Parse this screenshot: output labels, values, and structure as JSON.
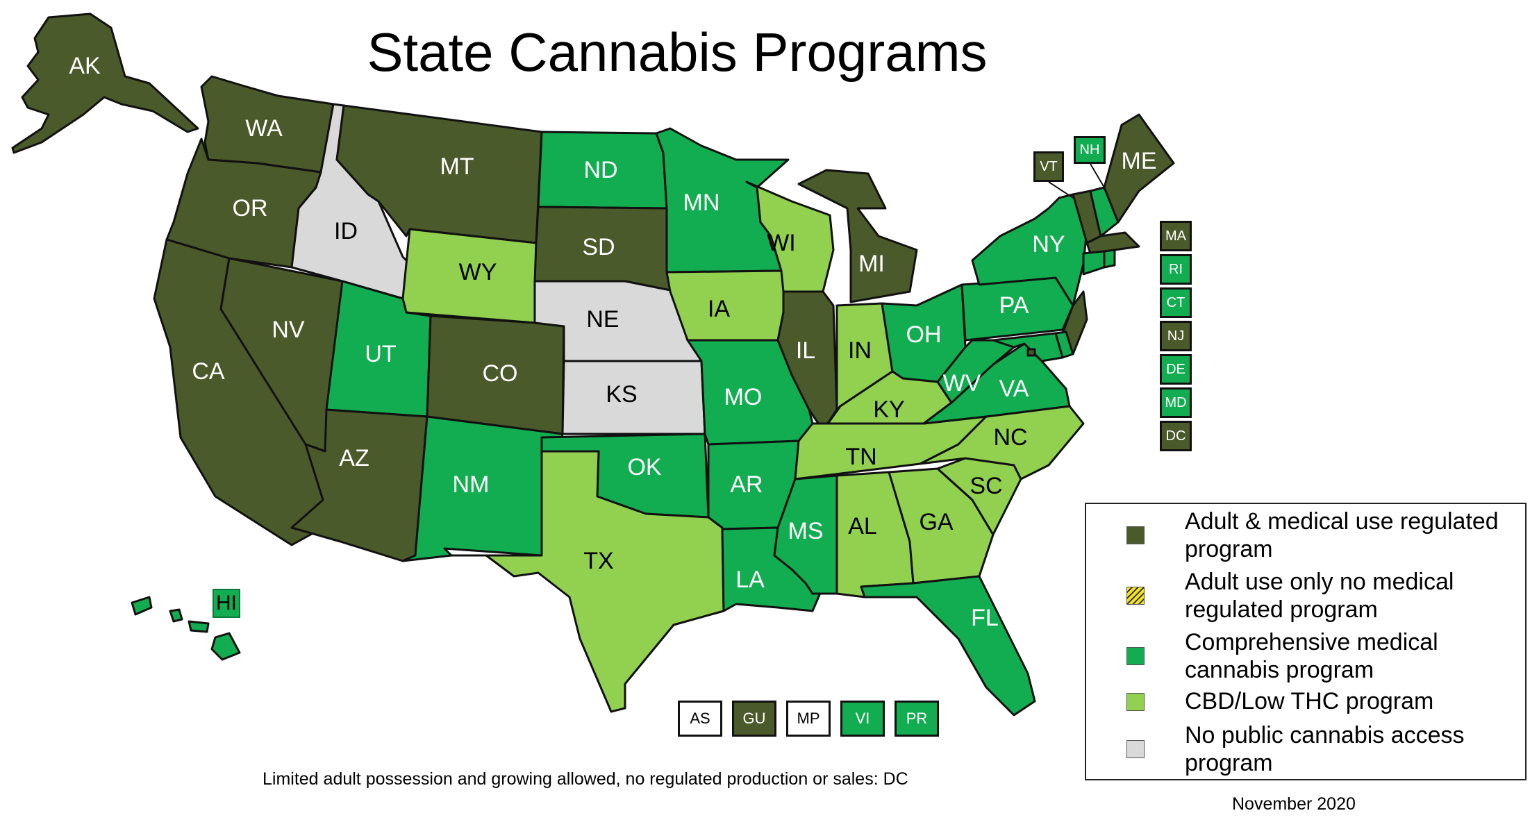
{
  "title": "State Cannabis Programs",
  "colors": {
    "adult_medical": "#4a5a2a",
    "adult_only": "#f4e31c",
    "comprehensive": "#12ad50",
    "cbd_low_thc": "#92d050",
    "no_program": "#d9d9d9",
    "territory_none": "#ffffff"
  },
  "states": [
    {
      "code": "AK",
      "category": "adult_medical"
    },
    {
      "code": "WA",
      "category": "adult_medical"
    },
    {
      "code": "OR",
      "category": "adult_medical"
    },
    {
      "code": "CA",
      "category": "adult_medical"
    },
    {
      "code": "NV",
      "category": "adult_medical"
    },
    {
      "code": "ID",
      "category": "no_program"
    },
    {
      "code": "MT",
      "category": "adult_medical"
    },
    {
      "code": "WY",
      "category": "cbd_low_thc"
    },
    {
      "code": "UT",
      "category": "comprehensive"
    },
    {
      "code": "AZ",
      "category": "adult_medical"
    },
    {
      "code": "CO",
      "category": "adult_medical"
    },
    {
      "code": "NM",
      "category": "comprehensive"
    },
    {
      "code": "ND",
      "category": "comprehensive"
    },
    {
      "code": "SD",
      "category": "adult_medical"
    },
    {
      "code": "NE",
      "category": "no_program"
    },
    {
      "code": "KS",
      "category": "no_program"
    },
    {
      "code": "OK",
      "category": "comprehensive"
    },
    {
      "code": "TX",
      "category": "cbd_low_thc"
    },
    {
      "code": "MN",
      "category": "comprehensive"
    },
    {
      "code": "IA",
      "category": "cbd_low_thc"
    },
    {
      "code": "MO",
      "category": "comprehensive"
    },
    {
      "code": "AR",
      "category": "comprehensive"
    },
    {
      "code": "LA",
      "category": "comprehensive"
    },
    {
      "code": "WI",
      "category": "cbd_low_thc"
    },
    {
      "code": "IL",
      "category": "adult_medical"
    },
    {
      "code": "MI",
      "category": "adult_medical"
    },
    {
      "code": "IN",
      "category": "cbd_low_thc"
    },
    {
      "code": "OH",
      "category": "comprehensive"
    },
    {
      "code": "KY",
      "category": "cbd_low_thc"
    },
    {
      "code": "TN",
      "category": "cbd_low_thc"
    },
    {
      "code": "MS",
      "category": "comprehensive"
    },
    {
      "code": "AL",
      "category": "cbd_low_thc"
    },
    {
      "code": "GA",
      "category": "cbd_low_thc"
    },
    {
      "code": "FL",
      "category": "comprehensive"
    },
    {
      "code": "SC",
      "category": "cbd_low_thc"
    },
    {
      "code": "NC",
      "category": "cbd_low_thc"
    },
    {
      "code": "VA",
      "category": "comprehensive"
    },
    {
      "code": "WV",
      "category": "comprehensive"
    },
    {
      "code": "PA",
      "category": "comprehensive"
    },
    {
      "code": "NY",
      "category": "comprehensive"
    },
    {
      "code": "NJ",
      "category": "adult_medical"
    },
    {
      "code": "VT",
      "category": "adult_medical"
    },
    {
      "code": "NH",
      "category": "comprehensive"
    },
    {
      "code": "ME",
      "category": "adult_medical"
    },
    {
      "code": "MA",
      "category": "adult_medical"
    },
    {
      "code": "RI",
      "category": "comprehensive"
    },
    {
      "code": "CT",
      "category": "comprehensive"
    },
    {
      "code": "DE",
      "category": "comprehensive"
    },
    {
      "code": "MD",
      "category": "comprehensive"
    },
    {
      "code": "DC",
      "category": "adult_medical"
    },
    {
      "code": "HI",
      "category": "comprehensive"
    }
  ],
  "ne_boxes": [
    {
      "code": "MA",
      "category": "adult_medical"
    },
    {
      "code": "RI",
      "category": "comprehensive"
    },
    {
      "code": "CT",
      "category": "comprehensive"
    },
    {
      "code": "NJ",
      "category": "adult_medical"
    },
    {
      "code": "DE",
      "category": "comprehensive"
    },
    {
      "code": "MD",
      "category": "comprehensive"
    },
    {
      "code": "DC",
      "category": "adult_medical"
    }
  ],
  "callouts": [
    {
      "code": "VT",
      "category": "adult_medical"
    },
    {
      "code": "NH",
      "category": "comprehensive"
    },
    {
      "code": "HI",
      "category": "comprehensive"
    }
  ],
  "territories": [
    {
      "code": "AS",
      "category": "territory_none"
    },
    {
      "code": "GU",
      "category": "adult_medical"
    },
    {
      "code": "MP",
      "category": "adult_only"
    },
    {
      "code": "VI",
      "category": "comprehensive"
    },
    {
      "code": "PR",
      "category": "comprehensive"
    }
  ],
  "legend": [
    {
      "label": "Adult & medical use regulated program",
      "category": "adult_medical"
    },
    {
      "label": "Adult use only no medical regulated program",
      "category": "adult_only"
    },
    {
      "label": "Comprehensive medical cannabis program",
      "category": "comprehensive"
    },
    {
      "label": "CBD/Low THC program",
      "category": "cbd_low_thc"
    },
    {
      "label": "No public cannabis access program",
      "category": "no_program"
    }
  ],
  "note": "Limited adult possession and growing allowed, no regulated production or sales: DC",
  "date": "November 2020"
}
